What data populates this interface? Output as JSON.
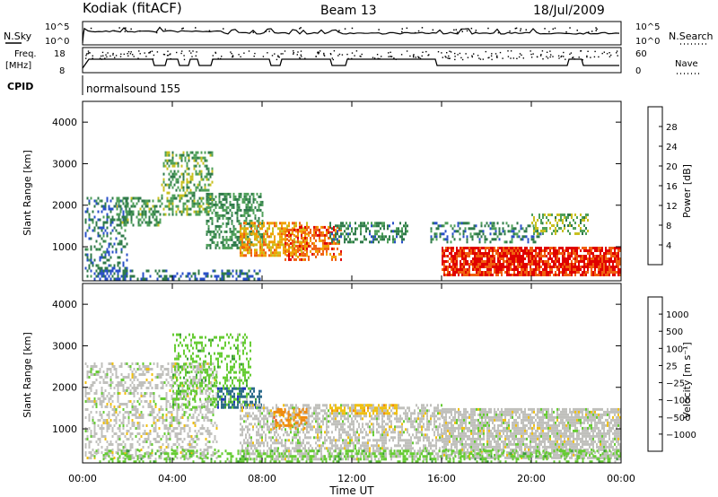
{
  "header": {
    "title": "Kodiak (fitACF)",
    "beam": "Beam 13",
    "date": "18/Jul/2009"
  },
  "top_panels": {
    "nsky_label": "N.Sky",
    "nsearch_label": "N.Search",
    "noise_ticks": [
      "10^5",
      "10^0"
    ],
    "freq_label": "Freq.",
    "freq_unit": "[MHz]",
    "freq_ticks": [
      "18",
      "8"
    ],
    "nave_label": "Nave",
    "nave_ticks": [
      "60",
      "0"
    ],
    "cpid_label": "CPID",
    "cpid_value": "normalsound 155"
  },
  "colors": {
    "power": [
      "#1030ff",
      "#2a50c8",
      "#2f7a4a",
      "#4fa05a",
      "#c8c020",
      "#f0a000",
      "#f06010",
      "#e00000"
    ],
    "velocity": [
      "#2030c0",
      "#2b6a8a",
      "#3a9a3a",
      "#66cc33",
      "#c0c0bc",
      "#f0c010",
      "#f08a10",
      "#f05010",
      "#e00000"
    ]
  },
  "chart_data": [
    {
      "type": "heatmap",
      "title": "Power",
      "ylabel": "Slant Range [km]",
      "xlabel": "",
      "y_ticks": [
        "4000",
        "3000",
        "2000",
        "1000"
      ],
      "ylim": [
        180,
        4500
      ],
      "colorbar_label": "Power [dB]",
      "colorbar_ticks": [
        "28",
        "24",
        "20",
        "16",
        "12",
        "8",
        "4"
      ],
      "scatter_regions": [
        {
          "t0": 0.1,
          "t1": 2.0,
          "r0": 300,
          "r1": 2200,
          "v": 9,
          "density": 0.35
        },
        {
          "t0": 1.5,
          "t1": 3.5,
          "r0": 1500,
          "r1": 2200,
          "v": 13,
          "density": 0.5
        },
        {
          "t0": 3.5,
          "t1": 5.8,
          "r0": 1800,
          "r1": 3300,
          "v": 14,
          "density": 0.45
        },
        {
          "t0": 5.5,
          "t1": 8.0,
          "r0": 1000,
          "r1": 2300,
          "v": 12,
          "density": 0.5
        },
        {
          "t0": 7.0,
          "t1": 10.0,
          "r0": 800,
          "r1": 1600,
          "v": 22,
          "density": 0.6
        },
        {
          "t0": 9.0,
          "t1": 11.5,
          "r0": 700,
          "r1": 1500,
          "v": 26,
          "density": 0.55
        },
        {
          "t0": 11.0,
          "t1": 14.5,
          "r0": 1100,
          "r1": 1600,
          "v": 11,
          "density": 0.45
        },
        {
          "t0": 0.5,
          "t1": 8.0,
          "r0": 200,
          "r1": 450,
          "v": 8,
          "density": 0.4
        },
        {
          "t0": 15.5,
          "t1": 20.5,
          "r0": 1100,
          "r1": 1600,
          "v": 10,
          "density": 0.35
        },
        {
          "t0": 16.0,
          "t1": 24.0,
          "r0": 300,
          "r1": 1000,
          "v": 29,
          "density": 0.85
        },
        {
          "t0": 20.0,
          "t1": 22.5,
          "r0": 1300,
          "r1": 1800,
          "v": 15,
          "density": 0.45
        }
      ]
    },
    {
      "type": "heatmap",
      "title": "Velocity",
      "ylabel": "Slant Range [km]",
      "xlabel": "Time UT",
      "x_ticks": [
        "00:00",
        "04:00",
        "08:00",
        "12:00",
        "16:00",
        "20:00",
        "00:00"
      ],
      "y_ticks": [
        "4000",
        "3000",
        "2000",
        "1000"
      ],
      "ylim": [
        180,
        4500
      ],
      "colorbar_label": "Velocity [m s⁻¹]",
      "colorbar_ticks": [
        "1000",
        "500",
        "100",
        "25",
        "−25",
        "−100",
        "−500",
        "−1000"
      ],
      "scatter_regions": [
        {
          "t0": 0.1,
          "t1": 6.0,
          "r0": 300,
          "r1": 2600,
          "c": 4,
          "density": 0.4
        },
        {
          "t0": 4.0,
          "t1": 7.5,
          "r0": 1500,
          "r1": 3300,
          "c": 3,
          "density": 0.35
        },
        {
          "t0": 6.0,
          "t1": 8.0,
          "r0": 1500,
          "r1": 2000,
          "c": 1,
          "density": 0.55
        },
        {
          "t0": 7.0,
          "t1": 16.0,
          "r0": 300,
          "r1": 1600,
          "c": 4,
          "density": 0.55
        },
        {
          "t0": 11.0,
          "t1": 14.0,
          "r0": 1400,
          "r1": 1600,
          "c": 5,
          "density": 0.5
        },
        {
          "t0": 16.0,
          "t1": 24.0,
          "r0": 300,
          "r1": 1500,
          "c": 4,
          "density": 0.75
        },
        {
          "t0": 0.5,
          "t1": 24.0,
          "r0": 200,
          "r1": 500,
          "c": 3,
          "density": 0.35
        },
        {
          "t0": 8.5,
          "t1": 10.0,
          "r0": 1000,
          "r1": 1500,
          "c": 6,
          "density": 0.5
        }
      ]
    }
  ]
}
